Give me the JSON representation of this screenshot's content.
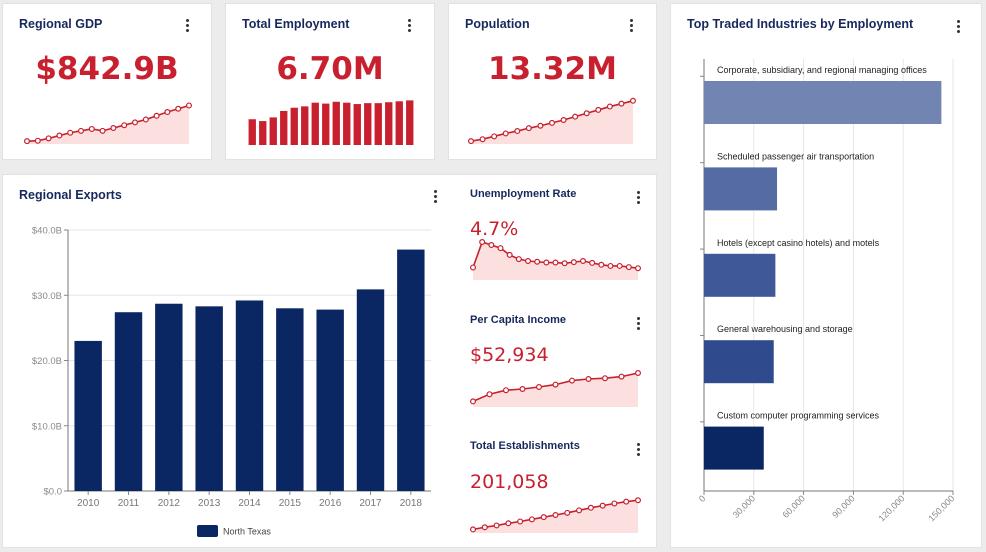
{
  "cards": {
    "gdp": {
      "title": "Regional GDP",
      "value": "$842.9B",
      "trend": [
        0.06,
        0.07,
        0.12,
        0.18,
        0.24,
        0.28,
        0.32,
        0.28,
        0.34,
        0.4,
        0.46,
        0.52,
        0.6,
        0.68,
        0.75,
        0.82
      ]
    },
    "employment": {
      "title": "Total Employment",
      "value": "6.70M",
      "bars": [
        0.56,
        0.52,
        0.6,
        0.74,
        0.81,
        0.84,
        0.92,
        0.9,
        0.94,
        0.92,
        0.89,
        0.91,
        0.91,
        0.93,
        0.95,
        0.97
      ]
    },
    "population": {
      "title": "Population",
      "value": "13.32M",
      "trend": [
        0.06,
        0.1,
        0.16,
        0.22,
        0.27,
        0.33,
        0.38,
        0.44,
        0.5,
        0.57,
        0.64,
        0.71,
        0.78,
        0.84,
        0.9
      ]
    },
    "unemployment": {
      "title": "Unemployment Rate",
      "value": "4.7%",
      "trend": [
        0.33,
        1.0,
        0.92,
        0.84,
        0.66,
        0.55,
        0.5,
        0.48,
        0.46,
        0.46,
        0.44,
        0.47,
        0.5,
        0.45,
        0.4,
        0.37,
        0.37,
        0.34,
        0.31
      ]
    },
    "income": {
      "title": "Per Capita Income",
      "value": "$52,934",
      "trend": [
        0.14,
        0.32,
        0.42,
        0.45,
        0.5,
        0.56,
        0.66,
        0.7,
        0.72,
        0.76,
        0.85
      ]
    },
    "establishments": {
      "title": "Total Establishments",
      "value": "201,058",
      "trend": [
        0.1,
        0.16,
        0.21,
        0.27,
        0.32,
        0.38,
        0.44,
        0.5,
        0.56,
        0.63,
        0.7,
        0.76,
        0.82,
        0.87,
        0.91
      ]
    }
  },
  "exports": {
    "title": "Regional Exports"
  },
  "industries": {
    "title": "Top Traded Industries by Employment"
  },
  "colors": {
    "accent_red": "#c8202e",
    "spark_fill": "#fbe0df",
    "navy": "#0b2763",
    "title_navy": "#16285c"
  },
  "chart_data": [
    {
      "type": "bar",
      "title": "Regional Exports",
      "categories": [
        "2010",
        "2011",
        "2012",
        "2013",
        "2014",
        "2015",
        "2016",
        "2017",
        "2018"
      ],
      "series": [
        {
          "name": "North Texas",
          "values": [
            23.0,
            27.4,
            28.7,
            28.3,
            29.2,
            28.0,
            27.8,
            30.9,
            37.0
          ]
        }
      ],
      "y_ticks": [
        "$0.0",
        "$10.0B",
        "$20.0B",
        "$30.0B",
        "$40.0B"
      ],
      "ylim": [
        0,
        40
      ],
      "grid": true,
      "legend": "bottom"
    },
    {
      "type": "bar",
      "orientation": "horizontal",
      "title": "Top Traded Industries by Employment",
      "categories": [
        "Corporate, subsidiary, and regional managing offices",
        "Scheduled passenger air transportation",
        "Hotels (except casino hotels) and motels",
        "General warehousing and storage",
        "Custom computer programming services"
      ],
      "values": [
        143000,
        44000,
        43000,
        42000,
        36000
      ],
      "bar_colors": [
        "#7184b2",
        "#546ba3",
        "#3f5998",
        "#2f4b8e",
        "#0b2763"
      ],
      "x_ticks": [
        "0",
        "30,000",
        "60,000",
        "90,000",
        "120,000",
        "150,000"
      ],
      "xlim": [
        0,
        150000
      ],
      "grid": true
    }
  ]
}
